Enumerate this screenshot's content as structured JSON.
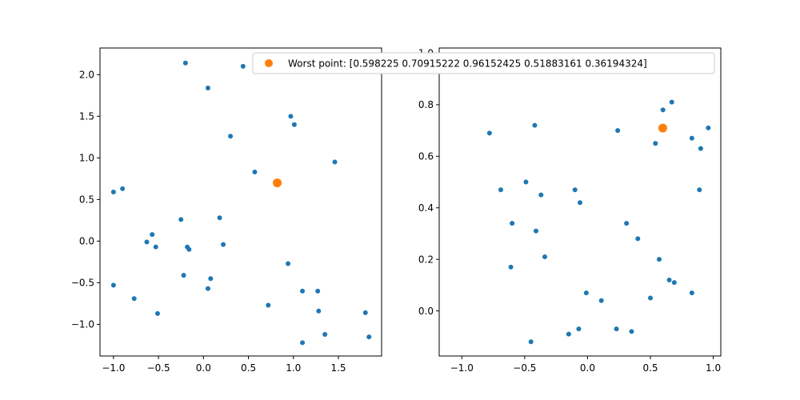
{
  "chart_data": [
    {
      "type": "scatter",
      "title": "",
      "xlabel": "",
      "ylabel": "",
      "xlim": [
        -1.15,
        1.98
      ],
      "ylim": [
        -1.38,
        2.32
      ],
      "x_ticks": [
        -1.0,
        -0.5,
        0.0,
        0.5,
        1.0,
        1.5
      ],
      "x_tick_labels": [
        "−1.0",
        "−0.5",
        "0.0",
        "0.5",
        "1.0",
        "1.5"
      ],
      "y_ticks": [
        -1.0,
        -0.5,
        0.0,
        0.5,
        1.0,
        1.5,
        2.0
      ],
      "y_tick_labels": [
        "−1.0",
        "−0.5",
        "0.0",
        "0.5",
        "1.0",
        "1.5",
        "2.0"
      ],
      "grid": false,
      "series": [
        {
          "color": "#1f77b4",
          "points": [
            [
              -0.2,
              2.14
            ],
            [
              0.44,
              2.1
            ],
            [
              0.05,
              1.84
            ],
            [
              0.97,
              1.5
            ],
            [
              1.01,
              1.4
            ],
            [
              0.3,
              1.26
            ],
            [
              1.46,
              0.95
            ],
            [
              0.57,
              0.83
            ],
            [
              -1.0,
              0.59
            ],
            [
              -0.9,
              0.63
            ],
            [
              -0.25,
              0.26
            ],
            [
              0.18,
              0.28
            ],
            [
              -0.57,
              0.08
            ],
            [
              -0.63,
              -0.01
            ],
            [
              -0.53,
              -0.07
            ],
            [
              -0.18,
              -0.07
            ],
            [
              -0.16,
              -0.1
            ],
            [
              0.22,
              -0.04
            ],
            [
              0.94,
              -0.27
            ],
            [
              -0.22,
              -0.41
            ],
            [
              0.08,
              -0.45
            ],
            [
              -1.0,
              -0.53
            ],
            [
              0.05,
              -0.57
            ],
            [
              1.1,
              -0.6
            ],
            [
              1.27,
              -0.6
            ],
            [
              -0.77,
              -0.69
            ],
            [
              0.72,
              -0.77
            ],
            [
              1.28,
              -0.84
            ],
            [
              -0.51,
              -0.87
            ],
            [
              1.8,
              -0.86
            ],
            [
              1.35,
              -1.12
            ],
            [
              1.84,
              -1.15
            ],
            [
              1.1,
              -1.22
            ]
          ]
        },
        {
          "name": "Worst point: [0.598225   0.70915222 0.96152425 0.51883161 0.36194324]",
          "color": "#ff7f0e",
          "points": [
            [
              0.82,
              0.7
            ]
          ]
        }
      ],
      "legend": {
        "placement": "upper right"
      }
    },
    {
      "type": "scatter",
      "title": "",
      "xlabel": "",
      "ylabel": "",
      "xlim": [
        -1.18,
        1.06
      ],
      "ylim": [
        -0.175,
        1.02
      ],
      "x_ticks": [
        -1.0,
        -0.5,
        0.0,
        0.5,
        1.0
      ],
      "x_tick_labels": [
        "−1.0",
        "−0.5",
        "0.0",
        "0.5",
        "1.0"
      ],
      "y_ticks": [
        0.0,
        0.2,
        0.4,
        0.6,
        0.8,
        1.0
      ],
      "y_tick_labels": [
        "0.0",
        "0.2",
        "0.4",
        "0.6",
        "0.8",
        "1.0"
      ],
      "grid": false,
      "series": [
        {
          "color": "#1f77b4",
          "points": [
            [
              0.67,
              0.81
            ],
            [
              0.6,
              0.78
            ],
            [
              -0.42,
              0.72
            ],
            [
              0.24,
              0.7
            ],
            [
              0.96,
              0.71
            ],
            [
              -0.78,
              0.69
            ],
            [
              0.83,
              0.67
            ],
            [
              0.54,
              0.65
            ],
            [
              0.9,
              0.63
            ],
            [
              -0.49,
              0.5
            ],
            [
              -0.69,
              0.47
            ],
            [
              -0.1,
              0.47
            ],
            [
              0.89,
              0.47
            ],
            [
              -0.37,
              0.45
            ],
            [
              -0.06,
              0.42
            ],
            [
              -0.6,
              0.34
            ],
            [
              0.31,
              0.34
            ],
            [
              -0.41,
              0.31
            ],
            [
              0.4,
              0.28
            ],
            [
              -0.34,
              0.21
            ],
            [
              0.57,
              0.2
            ],
            [
              -0.61,
              0.17
            ],
            [
              0.65,
              0.12
            ],
            [
              0.69,
              0.11
            ],
            [
              0.83,
              0.07
            ],
            [
              -0.01,
              0.07
            ],
            [
              0.5,
              0.05
            ],
            [
              0.11,
              0.04
            ],
            [
              0.23,
              -0.07
            ],
            [
              -0.07,
              -0.07
            ],
            [
              0.35,
              -0.08
            ],
            [
              -0.15,
              -0.09
            ],
            [
              -0.45,
              -0.12
            ]
          ]
        },
        {
          "color": "#ff7f0e",
          "points": [
            [
              0.598225,
              0.70915222
            ]
          ]
        }
      ]
    }
  ]
}
